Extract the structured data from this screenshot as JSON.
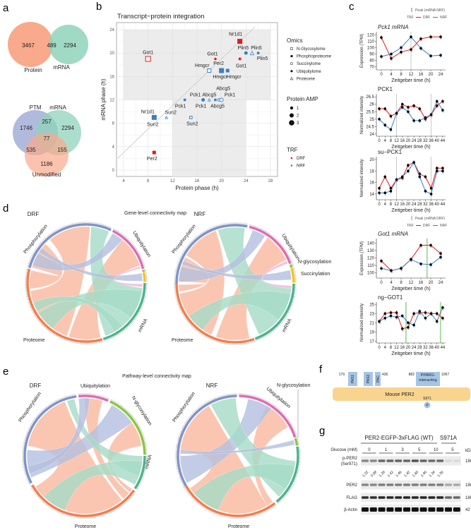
{
  "panel_labels": {
    "a": "a",
    "b": "b",
    "c": "c",
    "d": "d",
    "e": "e",
    "f": "f",
    "g": "g"
  },
  "venn": {
    "v1": {
      "protein_only": "3467",
      "overlap": "489",
      "mrna_only": "2294",
      "label_protein": "Protein",
      "label_mrna": "mRNA"
    },
    "v2": {
      "ptm_only": "1746",
      "ptm_mrna": "257",
      "mrna_only": "2294",
      "all": "77",
      "ptm_unmod": "535",
      "mrna_unmod": "155",
      "unmod_only": "1186",
      "label_ptm": "PTM",
      "label_mrna": "mRNA",
      "label_unmod": "Unmodified"
    },
    "colors": {
      "protein": "#f9a98c",
      "mrna": "#8fd3bb",
      "ptm": "#a7b2d8"
    }
  },
  "chart_data": [
    {
      "type": "scatter",
      "title": "Transcript−protein integration",
      "xlabel": "Protein phase (h)",
      "ylabel": "mRNA phase (h)",
      "xlim": [
        3,
        29
      ],
      "ylim": [
        -1,
        25
      ],
      "xticks": [
        "4",
        "8",
        "12",
        "16",
        "20",
        "24",
        "28"
      ],
      "yticks": [
        "0",
        "4",
        "8",
        "12",
        "16",
        "20",
        "24"
      ],
      "points": [
        {
          "label": "Got1",
          "x": 8,
          "y": 19,
          "trf": "DRF",
          "omics": "N-Glycosylome",
          "amp": 3
        },
        {
          "label": "Nr1d1",
          "x": 23,
          "y": 22,
          "trf": "DRF",
          "omics": "Phosphoproteome",
          "amp": 3
        },
        {
          "label": "Got1",
          "x": 19,
          "y": 19,
          "trf": "DRF",
          "omics": "Ubiquitylome",
          "amp": 1
        },
        {
          "label": "Got1",
          "x": 23,
          "y": 19,
          "trf": "DRF",
          "omics": "Phosphoproteome",
          "amp": 1
        },
        {
          "label": "Plin5",
          "x": 24,
          "y": 20,
          "trf": "NRF",
          "omics": "Ubiquitylome",
          "amp": 2
        },
        {
          "label": "Plin5",
          "x": 25,
          "y": 20,
          "trf": "NRF",
          "omics": "Proteome",
          "amp": 2
        },
        {
          "label": "Plin5",
          "x": 26,
          "y": 20,
          "trf": "NRF",
          "omics": "Phosphoproteome",
          "amp": 1
        },
        {
          "label": "Hmgcr",
          "x": 18,
          "y": 17,
          "trf": "NRF",
          "omics": "N-Glycosylome",
          "amp": 2
        },
        {
          "label": "Per2",
          "x": 20,
          "y": 17,
          "trf": "NRF",
          "omics": "Phosphoproteome",
          "amp": 3
        },
        {
          "label": "Hmgcr",
          "x": 20,
          "y": 17,
          "trf": "NRF",
          "omics": "Phosphoproteome",
          "amp": 2
        },
        {
          "label": "Hmgcr",
          "x": 21,
          "y": 17,
          "trf": "NRF",
          "omics": "Phosphoproteome",
          "amp": 2
        },
        {
          "label": "Pck1",
          "x": 14,
          "y": 12,
          "trf": "NRF",
          "omics": "Phosphoproteome",
          "amp": 1
        },
        {
          "label": "Pck1",
          "x": 17,
          "y": 12,
          "trf": "NRF",
          "omics": "Ubiquitylome",
          "amp": 2
        },
        {
          "label": "Pck1",
          "x": 17,
          "y": 12,
          "trf": "NRF",
          "omics": "Phosphoproteome",
          "amp": 1
        },
        {
          "label": "Abcg5",
          "x": 18,
          "y": 12,
          "trf": "NRF",
          "omics": "Proteome",
          "amp": 1
        },
        {
          "label": "Abcg5",
          "x": 19,
          "y": 12,
          "trf": "NRF",
          "omics": "Phosphoproteome",
          "amp": 1
        },
        {
          "label": "Abcg5",
          "x": 19.6,
          "y": 12,
          "trf": "NRF",
          "omics": "Succinylome",
          "amp": 1
        },
        {
          "label": "Pck1",
          "x": 20,
          "y": 12,
          "trf": "NRF",
          "omics": "Succinylome",
          "amp": 2
        },
        {
          "label": "Nr1d1",
          "x": 9,
          "y": 9,
          "trf": "NRF",
          "omics": "Phosphoproteome",
          "amp": 3
        },
        {
          "label": "Sun2",
          "x": 9,
          "y": 9,
          "trf": "NRF",
          "omics": "Phosphoproteome",
          "amp": 2
        },
        {
          "label": "Sun2",
          "x": 11,
          "y": 9,
          "trf": "NRF",
          "omics": "Proteome",
          "amp": 1
        },
        {
          "label": "Sun2",
          "x": 15,
          "y": 9,
          "trf": "NRF",
          "omics": "N-Glycosylome",
          "amp": 1
        },
        {
          "label": "Per2",
          "x": 9,
          "y": 3,
          "trf": "DRF",
          "omics": "Phosphoproteome",
          "amp": 2
        }
      ],
      "legend": {
        "omics_title": "Omics",
        "omics": [
          "N-Glycosylome",
          "Phosphoproteome",
          "Succinylome",
          "Ubiquitylome",
          "Proteome"
        ],
        "amp_title": "Protein AMP",
        "amp": [
          "1",
          "2",
          "3"
        ],
        "trf_title": "TRF",
        "trf": [
          "DRF",
          "NRF"
        ]
      },
      "colors": {
        "DRF": "#e41a1c",
        "NRF": "#3a7fc1"
      }
    },
    {
      "type": "line",
      "title": "Pck1 mRNA",
      "italic": true,
      "xlabel": "Zeitgeber time (h)",
      "ylabel": "Expression (TPM)",
      "x": [
        0,
        4,
        8,
        12,
        16,
        20,
        24
      ],
      "xlim": [
        -2,
        26
      ],
      "ylim": [
        65,
        125
      ],
      "yticks": [
        70,
        80,
        90,
        100,
        110,
        120
      ],
      "series": [
        {
          "name": "DRF",
          "values": [
            116,
            83,
            93,
            97,
            114,
            117,
            117
          ]
        },
        {
          "name": "NRF",
          "values": [
            86,
            90,
            100,
            117,
            99,
            87,
            88
          ]
        }
      ],
      "peaks": [
        12
      ],
      "peak_color": "#bdbdbd"
    },
    {
      "type": "line",
      "title": "PCK1",
      "italic": false,
      "xlabel": "Zeitgeber time (h)",
      "ylabel": "Normalized intensity",
      "x": [
        0,
        4,
        8,
        12,
        16,
        20,
        24,
        28,
        32,
        36,
        40,
        44
      ],
      "xlim": [
        -2,
        46
      ],
      "ylim": [
        23.85,
        26.7
      ],
      "yticks": [
        24.0,
        24.5,
        25.0,
        25.5,
        26.0,
        26.5
      ],
      "series": [
        {
          "name": "DRF",
          "values": [
            25.7,
            25.7,
            25.2,
            25.4,
            26.0,
            25.8,
            25.9,
            25.7,
            25.0,
            25.3,
            25.9,
            26.2
          ]
        },
        {
          "name": "NRF",
          "values": [
            25.0,
            24.6,
            24.3,
            25.4,
            25.8,
            25.5,
            24.9,
            24.9,
            25.1,
            25.3,
            26.2,
            25.6
          ]
        }
      ],
      "peaks": [
        12,
        36
      ],
      "peak_color": "#bdbdbd"
    },
    {
      "type": "line",
      "title": "su−PCK1",
      "italic": false,
      "xlabel": "Zeitgeber time (h)",
      "ylabel": "Normalized intensity",
      "x": [
        0,
        4,
        8,
        12,
        16,
        20,
        24,
        28,
        32,
        36,
        40,
        44
      ],
      "xlim": [
        -2,
        46
      ],
      "ylim": [
        13,
        20.5
      ],
      "yticks": [
        14,
        16,
        18,
        20
      ],
      "series": [
        {
          "name": "DRF",
          "values": [
            15,
            17,
            15,
            16.5,
            16.8,
            19,
            19.5,
            17.5,
            17,
            15,
            18.5,
            18.5
          ]
        },
        {
          "name": "NRF",
          "values": [
            14.2,
            14.2,
            14.5,
            16.5,
            17,
            18,
            19.5,
            17,
            14.5,
            14,
            18,
            18
          ]
        }
      ],
      "peaks": [
        12,
        36
      ],
      "peak_color": "#bdbdbd"
    },
    {
      "type": "line",
      "title": "Got1 mRNA",
      "italic": true,
      "xlabel": "Zeitgeber time (h)",
      "ylabel": "Expression (TPM)",
      "x": [
        0,
        4,
        8,
        12,
        16,
        20,
        24
      ],
      "xlim": [
        -2,
        26
      ],
      "ylim": [
        93,
        146
      ],
      "yticks": [
        100,
        110,
        120,
        130,
        140
      ],
      "series": [
        {
          "name": "DRF",
          "values": [
            116,
            103,
            106,
            118,
            137,
            137,
            126
          ]
        },
        {
          "name": "NRF",
          "values": [
            106,
            103,
            106,
            118,
            112,
            111,
            121
          ]
        }
      ],
      "peaks": [
        18.5
      ],
      "peak_color": "#a8dca0"
    },
    {
      "type": "line",
      "title": "ng−GOT1",
      "italic": false,
      "xlabel": "Zeitgeber time (h)",
      "ylabel": "Normalized intensity",
      "x": [
        0,
        4,
        8,
        12,
        16,
        20,
        24,
        28,
        32,
        36,
        40,
        44
      ],
      "xlim": [
        -2,
        46
      ],
      "ylim": [
        16.6,
        25.5
      ],
      "yticks": [
        17,
        19,
        21,
        23,
        25
      ],
      "series": [
        {
          "name": "DRF",
          "values": [
            21.3,
            23,
            23.2,
            23.2,
            19.7,
            20,
            23,
            23.2,
            23.2,
            23,
            23,
            22
          ]
        },
        {
          "name": "NRF",
          "values": [
            21.3,
            22,
            22.5,
            22.2,
            22.5,
            21,
            20.5,
            23.5,
            22,
            23,
            21.3,
            24.3
          ]
        }
      ],
      "peaks": [
        18.5,
        42.5
      ],
      "peak_color": "#a8dca0"
    }
  ],
  "c_legend": {
    "peak_nrf": "Peak (mRNA NRF)",
    "peak_drf": "Peak (mRNA DRF)",
    "trf": "TRF",
    "drf": "DRF",
    "nrf": "NRF",
    "drf_color": "#e41a1c",
    "nrf_color": "#3a7fc1"
  },
  "chord": {
    "d_title": "Gene-level connectivity map",
    "e_title": "Pathway-level connectivity map",
    "drf": "DRF",
    "nrf": "NRF",
    "sectors": {
      "phospho": "Phosphorylation",
      "ubiq": "Ubiquitylation",
      "nglyco": "N-glycosylation",
      "succ": "Succinylation",
      "mrna": "mRNA",
      "proteome": "Proteome"
    },
    "colors": {
      "phospho": "#7f93c9",
      "ubiq": "#de6cb5",
      "nglyco": "#8cc63f",
      "succ": "#f5c518",
      "mrna": "#4db38e",
      "proteome": "#f47d4c"
    }
  },
  "f": {
    "protein": "Mouse PER2",
    "domains": [
      "PAS1",
      "PAS2",
      "PAC",
      "PPARG-interacting"
    ],
    "pos_179": "179",
    "pos_436": "436",
    "pos_882": "882",
    "pos_1067": "1067",
    "site": "S971",
    "phos": "P"
  },
  "g": {
    "construct": "PER2-EGFP-3xFLAG (WT)",
    "mutant": "S971A",
    "glucose_label": "Glucose (mM)",
    "glucose": [
      "0",
      "1",
      "3",
      "5",
      "10",
      "5"
    ],
    "kda": "kDa",
    "rows": [
      {
        "label": "p-PER2",
        "sub": "(Ser971)",
        "kda": "180"
      },
      {
        "label": "PER2",
        "kda": "180"
      },
      {
        "label": "FLAG",
        "kda": "180"
      },
      {
        "label": "β-Actin",
        "kda": "42"
      }
    ],
    "quant": [
      "1.02",
      "0.98",
      "1.28",
      "1.42",
      "1.46",
      "1.42",
      "1.65",
      "1.46",
      "1.34",
      "1.39"
    ]
  }
}
